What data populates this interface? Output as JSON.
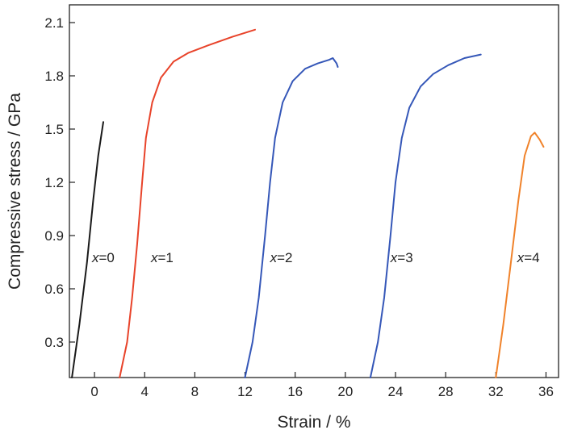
{
  "chart_data": {
    "type": "line",
    "xlabel": "Strain / %",
    "ylabel": "Compressive stress / GPa",
    "xlim": [
      -2,
      37
    ],
    "ylim": [
      0.1,
      2.2
    ],
    "x_ticks": [
      0,
      4,
      8,
      12,
      16,
      20,
      24,
      28,
      32,
      36
    ],
    "y_ticks": [
      0.3,
      0.6,
      0.9,
      1.2,
      1.5,
      1.8,
      2.1
    ],
    "x_tick_labels": [
      "0",
      "4",
      "8",
      "12",
      "16",
      "20",
      "24",
      "28",
      "32",
      "36"
    ],
    "y_tick_labels": [
      "0.3",
      "0.6",
      "0.9",
      "1.2",
      "1.5",
      "1.8",
      "2.1"
    ],
    "grid": false,
    "series": [
      {
        "name": "x=0",
        "label_var": "x",
        "label_rest": "=0",
        "color": "#1a1a1a",
        "label_at": [
          -0.2,
          0.75
        ],
        "points": [
          [
            -1.8,
            0.1
          ],
          [
            -1.2,
            0.4
          ],
          [
            -0.6,
            0.75
          ],
          [
            -0.1,
            1.1
          ],
          [
            0.3,
            1.35
          ],
          [
            0.7,
            1.54
          ]
        ]
      },
      {
        "name": "x=1",
        "label_var": "x",
        "label_rest": "=1",
        "color": "#e8432a",
        "label_at": [
          4.5,
          0.75
        ],
        "points": [
          [
            2.0,
            0.1
          ],
          [
            2.6,
            0.3
          ],
          [
            3.0,
            0.55
          ],
          [
            3.4,
            0.85
          ],
          [
            3.8,
            1.2
          ],
          [
            4.1,
            1.45
          ],
          [
            4.6,
            1.65
          ],
          [
            5.3,
            1.79
          ],
          [
            6.3,
            1.88
          ],
          [
            7.5,
            1.93
          ],
          [
            9.0,
            1.97
          ],
          [
            11.0,
            2.02
          ],
          [
            12.8,
            2.06
          ]
        ]
      },
      {
        "name": "x=2",
        "label_var": "x",
        "label_rest": "=2",
        "color": "#3557b8",
        "label_at": [
          14.0,
          0.75
        ],
        "points": [
          [
            12.0,
            0.1
          ],
          [
            12.6,
            0.3
          ],
          [
            13.1,
            0.55
          ],
          [
            13.6,
            0.9
          ],
          [
            14.0,
            1.2
          ],
          [
            14.4,
            1.45
          ],
          [
            15.0,
            1.65
          ],
          [
            15.8,
            1.77
          ],
          [
            16.8,
            1.84
          ],
          [
            17.8,
            1.87
          ],
          [
            18.7,
            1.89
          ],
          [
            19.0,
            1.9
          ],
          [
            19.3,
            1.87
          ],
          [
            19.4,
            1.85
          ]
        ]
      },
      {
        "name": "x=3",
        "label_var": "x",
        "label_rest": "=3",
        "color": "#3557b8",
        "label_at": [
          23.6,
          0.75
        ],
        "points": [
          [
            22.0,
            0.1
          ],
          [
            22.6,
            0.3
          ],
          [
            23.1,
            0.55
          ],
          [
            23.6,
            0.9
          ],
          [
            24.0,
            1.2
          ],
          [
            24.5,
            1.45
          ],
          [
            25.1,
            1.62
          ],
          [
            26.0,
            1.74
          ],
          [
            27.0,
            1.81
          ],
          [
            28.2,
            1.86
          ],
          [
            29.5,
            1.9
          ],
          [
            30.8,
            1.92
          ]
        ]
      },
      {
        "name": "x=4",
        "label_var": "x",
        "label_rest": "=4",
        "color": "#f0822a",
        "label_at": [
          33.7,
          0.75
        ],
        "points": [
          [
            32.0,
            0.1
          ],
          [
            32.6,
            0.4
          ],
          [
            33.2,
            0.75
          ],
          [
            33.8,
            1.1
          ],
          [
            34.3,
            1.35
          ],
          [
            34.8,
            1.46
          ],
          [
            35.1,
            1.48
          ],
          [
            35.5,
            1.44
          ],
          [
            35.8,
            1.4
          ]
        ]
      }
    ]
  }
}
